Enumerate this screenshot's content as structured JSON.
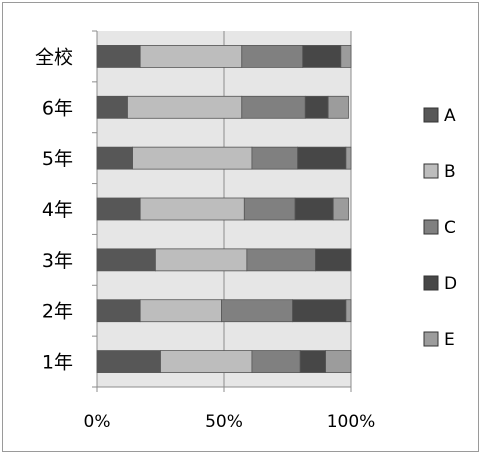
{
  "chart_data": {
    "type": "bar",
    "stacked": true,
    "orientation": "horizontal",
    "percent_stacked": true,
    "categories": [
      "全校",
      "6年",
      "5年",
      "4年",
      "3年",
      "2年",
      "1年"
    ],
    "series": [
      {
        "name": "A",
        "color": "#575757",
        "values": [
          17,
          12,
          14,
          17,
          23,
          17,
          25
        ]
      },
      {
        "name": "B",
        "color": "#bdbdbd",
        "values": [
          40,
          45,
          47,
          41,
          36,
          32,
          36
        ]
      },
      {
        "name": "C",
        "color": "#808080",
        "values": [
          24,
          25,
          18,
          20,
          27,
          28,
          19
        ]
      },
      {
        "name": "D",
        "color": "#474747",
        "values": [
          15,
          9,
          19,
          15,
          14,
          21,
          10
        ]
      },
      {
        "name": "E",
        "color": "#9c9c9c",
        "values": [
          4,
          8,
          2,
          6,
          0,
          2,
          10
        ]
      }
    ],
    "xlim": [
      0,
      100
    ],
    "xticks": [
      "0%",
      "50%",
      "100%"
    ],
    "grid": true,
    "legend": "right",
    "plot_background": "#e6e6e6"
  }
}
